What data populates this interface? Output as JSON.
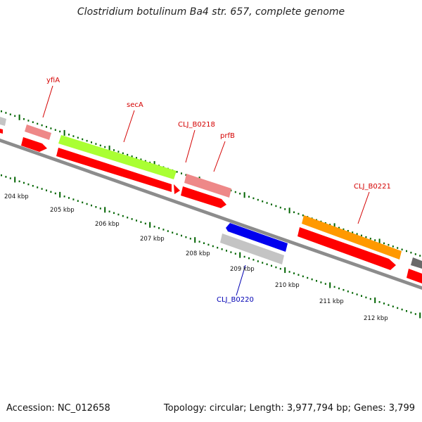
{
  "title": "Clostridium botulinum Ba4 str. 657, complete genome",
  "footer": {
    "accession": "Accession: NC_012658",
    "summary": "Topology: circular; Length: 3,977,794 bp; Genes: 3,799"
  },
  "ruler_labels": [
    "204 kbp",
    "205 kbp",
    "206 kbp",
    "207 kbp",
    "208 kbp",
    "209 kbp",
    "210 kbp",
    "211 kbp",
    "212 kbp"
  ],
  "gene_labels": [
    {
      "text": "yfiA",
      "color": "#d40000"
    },
    {
      "text": "secA",
      "color": "#d40000"
    },
    {
      "text": "CLJ_B0218",
      "color": "#d40000"
    },
    {
      "text": "prfB",
      "color": "#d40000"
    },
    {
      "text": "CLJ_B0221",
      "color": "#d40000"
    },
    {
      "text": "CLJ_B0220",
      "color": "#0000b4"
    }
  ],
  "colors": {
    "backbone": "#8c8c8c",
    "cds": "#ff0000",
    "gene_pink": "#ee8888",
    "gene_lime": "#aaff33",
    "gene_orange": "#ff9900",
    "gene_blue": "#0000ee",
    "gene_grey": "#c4c4c4",
    "gene_dark": "#6a6a6a",
    "tick": "#006400"
  }
}
